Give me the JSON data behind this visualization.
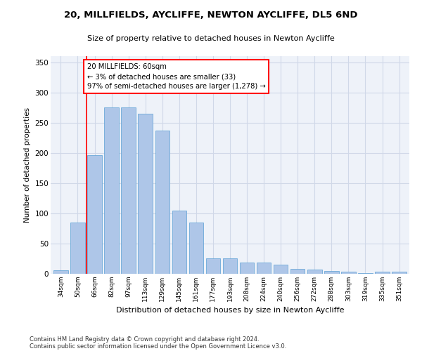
{
  "title1": "20, MILLFIELDS, AYCLIFFE, NEWTON AYCLIFFE, DL5 6ND",
  "title2": "Size of property relative to detached houses in Newton Aycliffe",
  "xlabel": "Distribution of detached houses by size in Newton Aycliffe",
  "ylabel": "Number of detached properties",
  "bar_color": "#aec6e8",
  "bar_edge_color": "#5a9fd4",
  "categories": [
    "34sqm",
    "50sqm",
    "66sqm",
    "82sqm",
    "97sqm",
    "113sqm",
    "129sqm",
    "145sqm",
    "161sqm",
    "177sqm",
    "193sqm",
    "208sqm",
    "224sqm",
    "240sqm",
    "256sqm",
    "272sqm",
    "288sqm",
    "303sqm",
    "319sqm",
    "335sqm",
    "351sqm"
  ],
  "values": [
    6,
    85,
    196,
    275,
    275,
    265,
    237,
    104,
    85,
    26,
    25,
    19,
    19,
    15,
    8,
    7,
    5,
    4,
    1,
    4,
    4
  ],
  "annotation_text": "20 MILLFIELDS: 60sqm\n← 3% of detached houses are smaller (33)\n97% of semi-detached houses are larger (1,278) →",
  "vline_x": 1.5,
  "ylim": [
    0,
    360
  ],
  "yticks": [
    0,
    50,
    100,
    150,
    200,
    250,
    300,
    350
  ],
  "footer1": "Contains HM Land Registry data © Crown copyright and database right 2024.",
  "footer2": "Contains public sector information licensed under the Open Government Licence v3.0.",
  "bg_color": "#eef2f9",
  "grid_color": "#d0d8e8"
}
